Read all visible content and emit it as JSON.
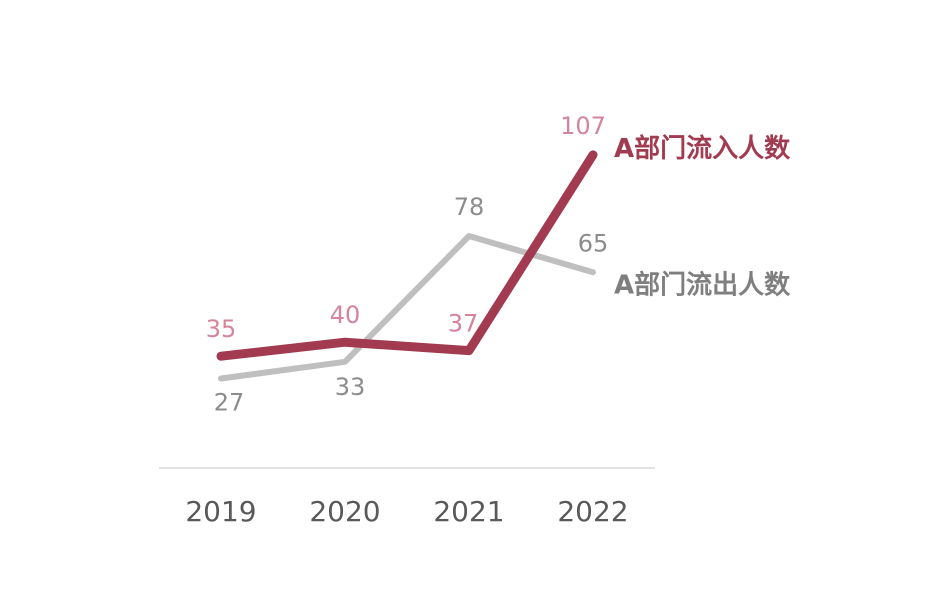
{
  "chart_data": {
    "type": "line",
    "categories": [
      "2019",
      "2020",
      "2021",
      "2022"
    ],
    "series": [
      {
        "name": "A部门流入人数",
        "values": [
          35,
          40,
          37,
          107
        ],
        "color": "#a23a50",
        "label_color": "#d4849b"
      },
      {
        "name": "A部门流出人数",
        "values": [
          27,
          33,
          78,
          65
        ],
        "color": "#bfbfbf",
        "label_color": "#8c8c8c"
      }
    ],
    "ylim": [
      -5,
      132
    ],
    "grid": false,
    "legend": "inline-right"
  }
}
